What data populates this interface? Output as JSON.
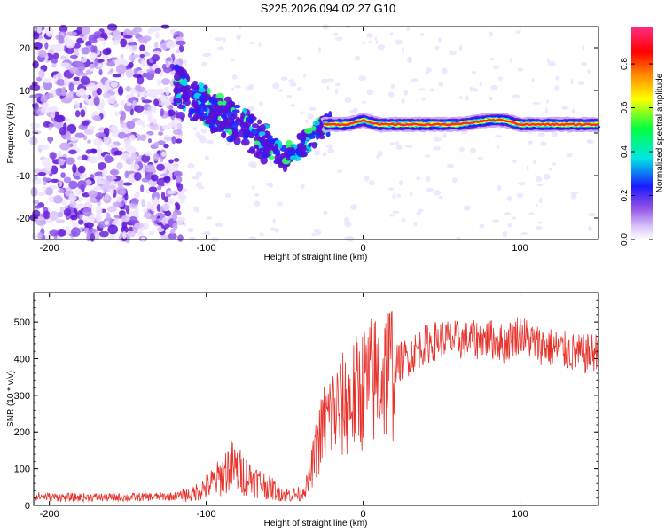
{
  "title": "S225.2026.094.02.27.G10",
  "chart_data": [
    {
      "type": "heatmap",
      "xlabel": "Height of straight line (km)",
      "ylabel": "Frequency (Hz)",
      "xlim": [
        -210,
        150
      ],
      "ylim": [
        -25,
        25
      ],
      "x_ticks": [
        -200,
        -100,
        0,
        100
      ],
      "y_ticks": [
        -20,
        -10,
        0,
        10,
        20
      ],
      "colorbar": {
        "label": "Normalized spectral amplitude",
        "range": [
          0,
          0.97
        ],
        "ticks": [
          0,
          0.2,
          0.4,
          0.6,
          0.8
        ],
        "colors": [
          "#f4eeff",
          "#c9a8f5",
          "#6a1fd6",
          "#1a1aff",
          "#00e6e6",
          "#00ff40",
          "#ffff00",
          "#ff7f00",
          "#ff0000",
          "#ff2d86"
        ]
      },
      "ridge": {
        "description_free": true,
        "x": [
          -120,
          -110,
          -100,
          -90,
          -80,
          -70,
          -60,
          -50,
          -45,
          -40,
          -35,
          -30,
          -25,
          -20,
          -10,
          0,
          10,
          20,
          40,
          60,
          80,
          90,
          100,
          120,
          150
        ],
        "y": [
          12,
          8,
          6,
          4,
          2,
          0,
          -3,
          -6,
          -4,
          -3,
          -2,
          0,
          2,
          2,
          2,
          3,
          2,
          2,
          2,
          2,
          3,
          3,
          2,
          2,
          2
        ]
      },
      "scatter_region_x": [
        -210,
        -115
      ],
      "scatter_region_y": [
        -25,
        25
      ]
    },
    {
      "type": "line",
      "xlabel": "Height of straight line (km)",
      "ylabel": "SNR (10 * v/v)",
      "xlim": [
        -210,
        150
      ],
      "ylim": [
        0,
        580
      ],
      "x_ticks": [
        -200,
        -100,
        0,
        100
      ],
      "y_ticks": [
        0,
        100,
        200,
        300,
        400,
        500
      ],
      "color": "#e8312b",
      "series": [
        {
          "name": "SNR",
          "x": [
            -210,
            -190,
            -170,
            -150,
            -130,
            -120,
            -110,
            -100,
            -90,
            -85,
            -80,
            -70,
            -60,
            -50,
            -40,
            -35,
            -30,
            -25,
            -20,
            -10,
            0,
            10,
            20,
            30,
            40,
            50,
            60,
            70,
            80,
            90,
            100,
            110,
            120,
            130,
            140,
            150
          ],
          "y": [
            25,
            22,
            22,
            22,
            24,
            25,
            30,
            50,
            80,
            110,
            95,
            70,
            50,
            30,
            30,
            60,
            150,
            220,
            250,
            280,
            320,
            350,
            380,
            410,
            440,
            455,
            450,
            450,
            455,
            440,
            470,
            440,
            430,
            420,
            410,
            420
          ]
        }
      ]
    }
  ]
}
